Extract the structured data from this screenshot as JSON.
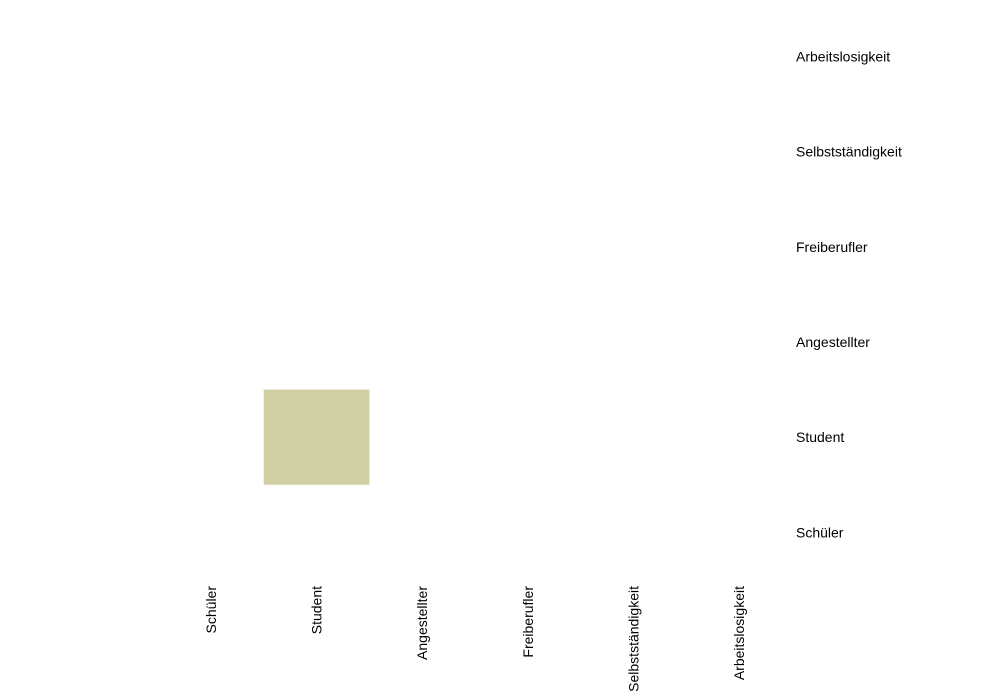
{
  "chart_data": {
    "type": "heatmap",
    "x_categories": [
      "Schüler",
      "Student",
      "Angestellter",
      "Freiberufler",
      "Selbstständigkeit",
      "Arbeitslosigkeit"
    ],
    "y_categories": [
      "Schüler",
      "Student",
      "Angestellter",
      "Freiberufler",
      "Selbstständigkeit",
      "Arbeitslosigkeit"
    ],
    "cells": [
      {
        "x": "Student",
        "y": "Student",
        "color": "#d1cfa4"
      }
    ],
    "legend": "none",
    "grid": false
  }
}
